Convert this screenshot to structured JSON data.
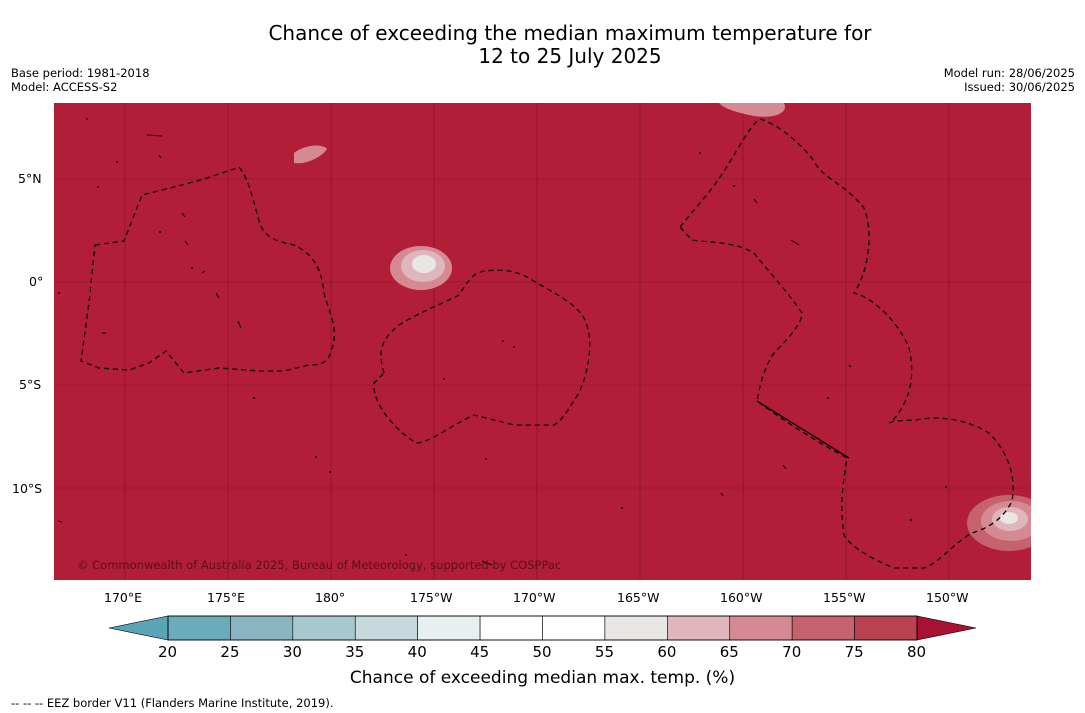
{
  "title": {
    "line1": "Chance of exceeding the median maximum temperature for",
    "line2": "12 to 25 July 2025"
  },
  "meta_left": {
    "base_period": "Base period: 1981-2018",
    "model": "Model: ACCESS-S2"
  },
  "meta_right": {
    "model_run": "Model run: 28/06/2025",
    "issued": "Issued: 30/06/2025"
  },
  "map": {
    "background_color": "#b21e38",
    "copyright": "© Commonwealth of Australia 2025, Bureau of Meteorology, supported by COSPPac",
    "lat_labels": [
      "5°N",
      "0°",
      "5°S",
      "10°S"
    ],
    "lon_labels": [
      "170°E",
      "175°E",
      "180°",
      "175°W",
      "170°W",
      "165°W",
      "160°W",
      "155°W",
      "150°W"
    ]
  },
  "colorbar": {
    "tick_labels": [
      "20",
      "25",
      "30",
      "35",
      "40",
      "45",
      "50",
      "55",
      "60",
      "65",
      "70",
      "75",
      "80"
    ],
    "colors": [
      "#6aacbb",
      "#89b6c2",
      "#a8c8cf",
      "#c6d9dd",
      "#e8eff1",
      "#ffffff",
      "#ffffff",
      "#e9e6e6",
      "#dfb6bb",
      "#d58a93",
      "#c6626d",
      "#b84250"
    ],
    "under_color": "#5aa4b5",
    "over_color": "#a8112f",
    "title": "Chance of exceeding median max. temp. (%)"
  },
  "eez_note": "--  --  -- EEZ border V11 (Flanders Marine Institute, 2019)."
}
